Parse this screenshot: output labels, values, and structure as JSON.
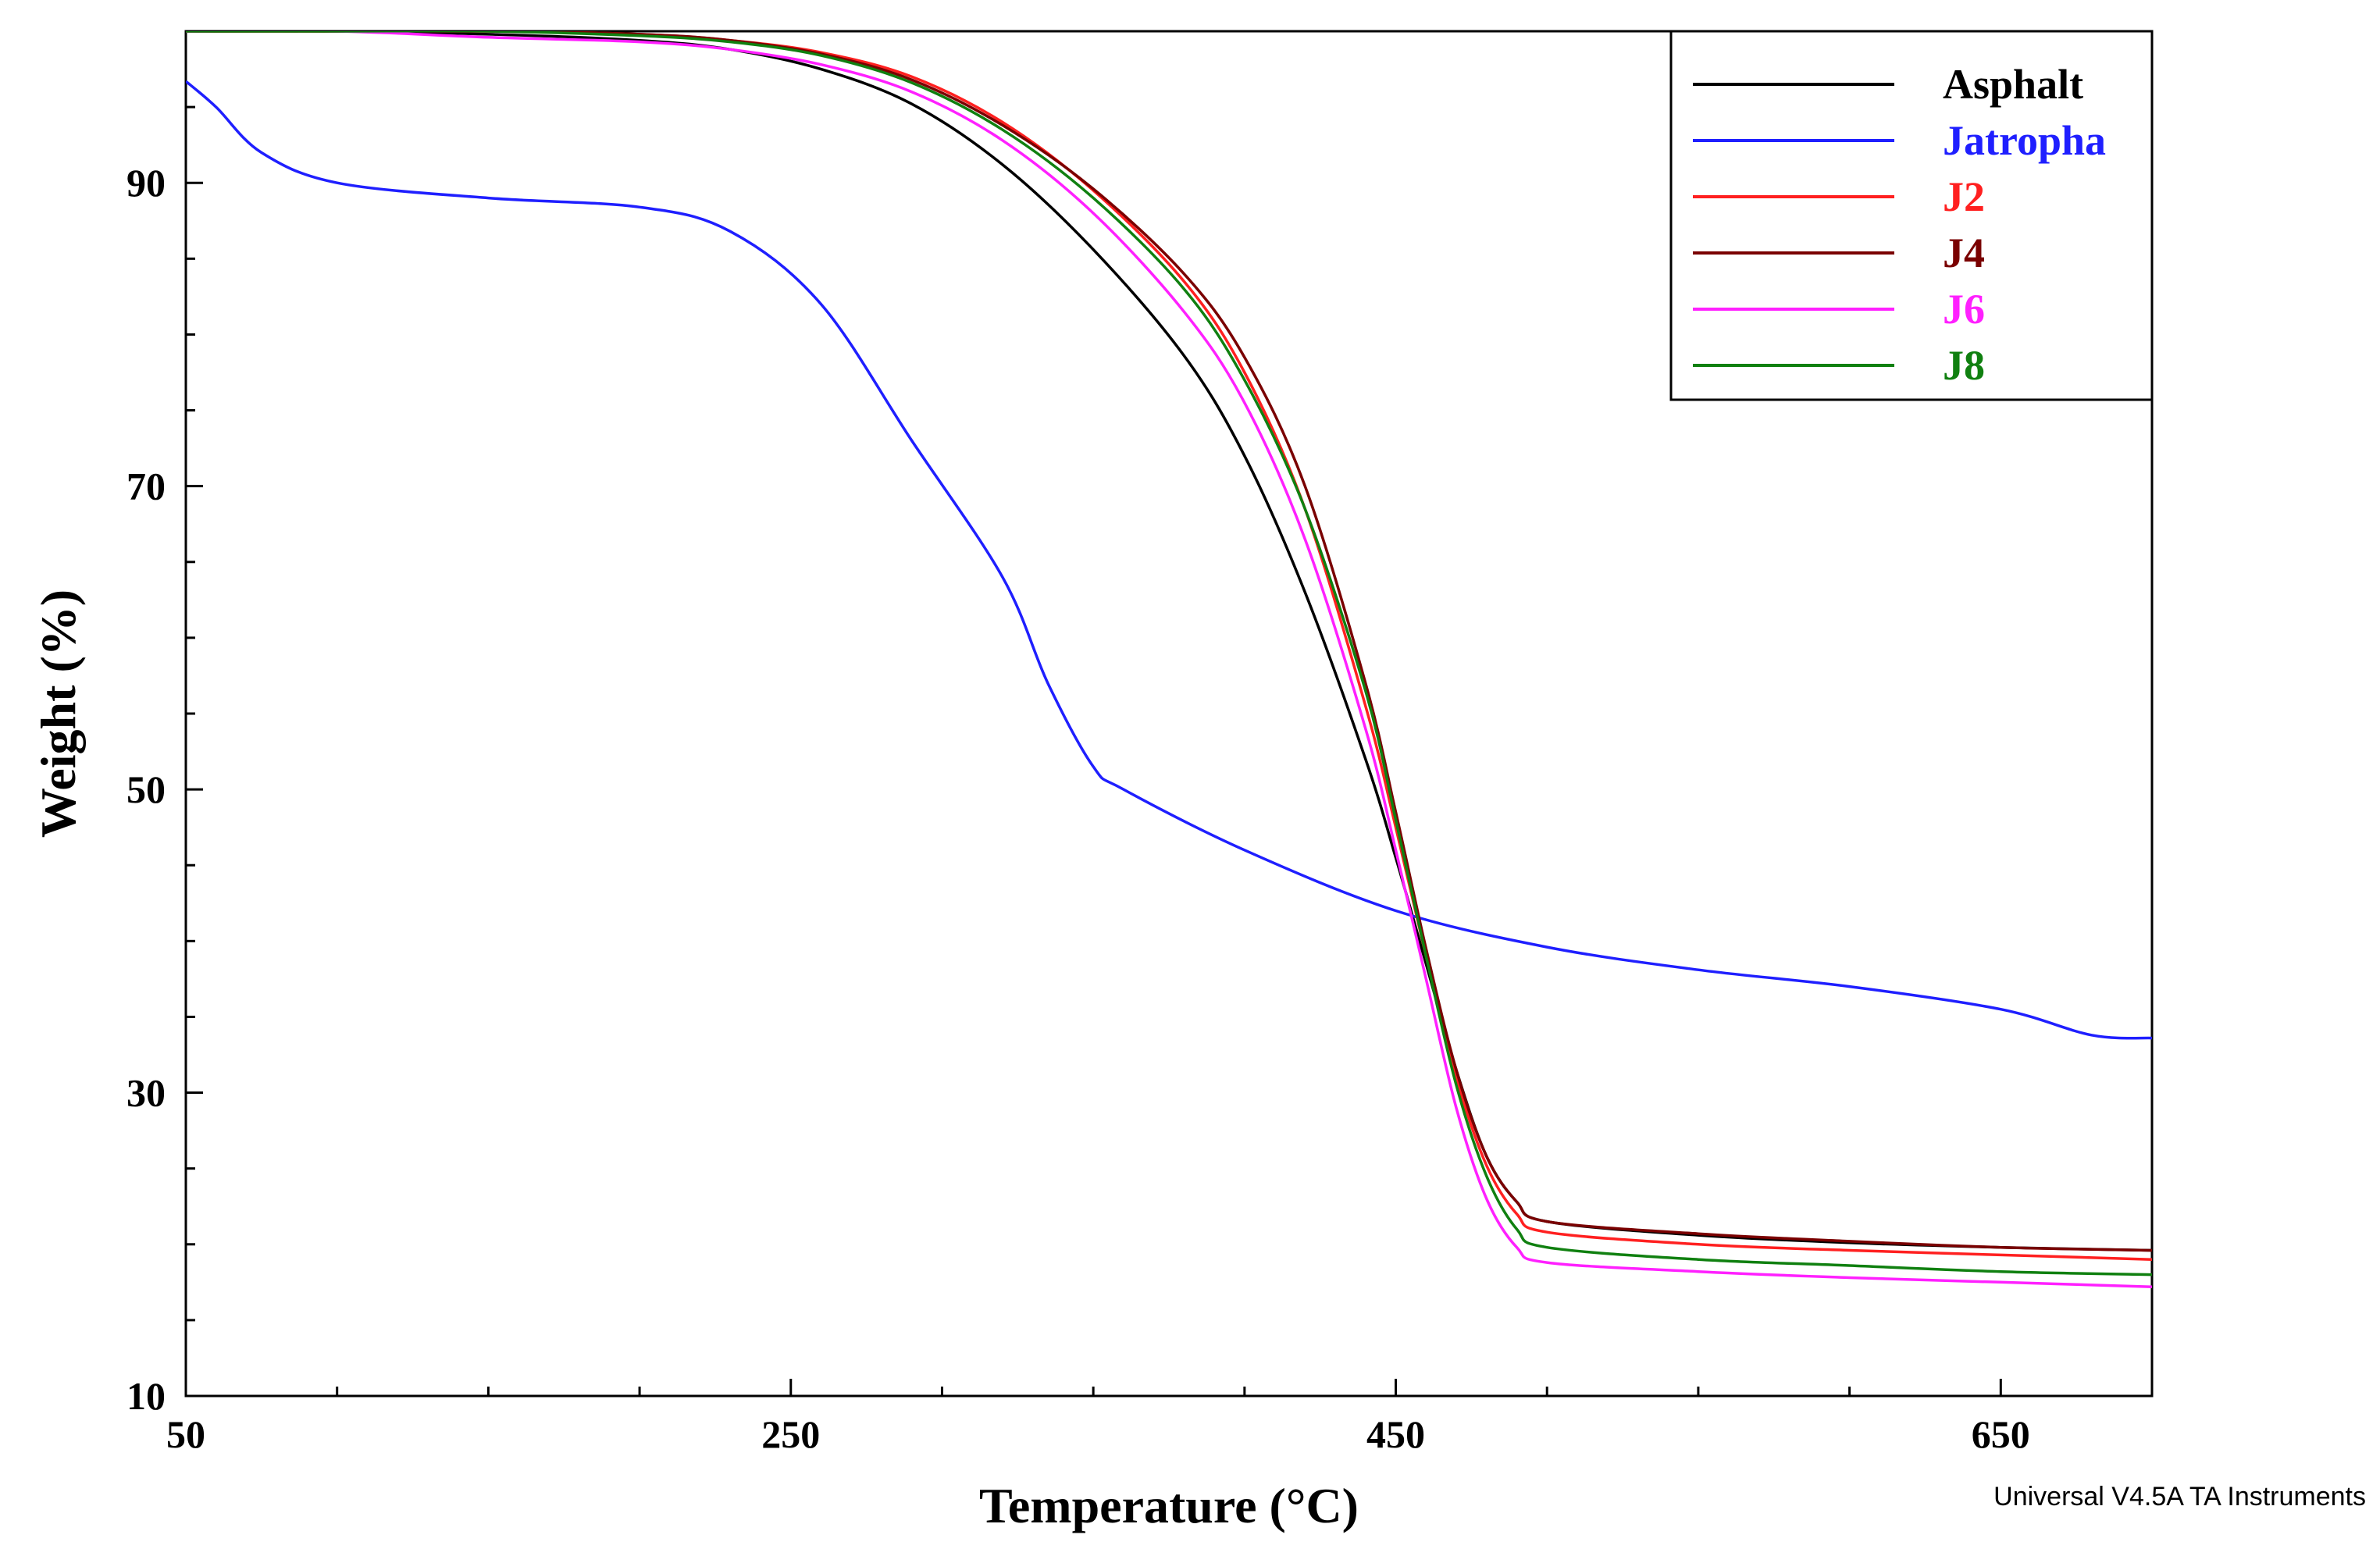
{
  "chart_data": {
    "type": "line",
    "title": "",
    "xlabel": "Temperature (°C)",
    "ylabel": "Weight (%)",
    "xlim": [
      50,
      700
    ],
    "ylim": [
      10,
      100
    ],
    "xticks": [
      50,
      250,
      450,
      650
    ],
    "yticks": [
      10,
      30,
      50,
      70,
      90
    ],
    "footer": "Universal V4.5A TA Instruments",
    "legend_position": "top-right",
    "series": [
      {
        "name": "Asphalt",
        "color": "#000000",
        "x": [
          50,
          100,
          150,
          200,
          230,
          260,
          290,
          320,
          350,
          380,
          400,
          420,
          440,
          450,
          460,
          470,
          480,
          490,
          500,
          550,
          600,
          650,
          700
        ],
        "y": [
          100,
          100,
          99.8,
          99.4,
          98.8,
          97.5,
          95.2,
          91.2,
          85.6,
          78.6,
          72.0,
          63.0,
          52.0,
          45.5,
          38.5,
          31.5,
          25.8,
          22.8,
          21.5,
          20.6,
          20.1,
          19.8,
          19.6
        ]
      },
      {
        "name": "Jatropha",
        "color": "#1f1fff",
        "x": [
          50,
          60,
          75,
          100,
          150,
          200,
          230,
          260,
          290,
          320,
          335,
          350,
          360,
          400,
          450,
          500,
          550,
          600,
          650,
          680,
          700
        ],
        "y": [
          96.7,
          95.0,
          92.0,
          90.0,
          89.0,
          88.4,
          86.8,
          82.0,
          73.0,
          64.0,
          57.0,
          51.5,
          50.0,
          46.0,
          42.0,
          39.6,
          38.1,
          37.0,
          35.5,
          33.8,
          33.6
        ]
      },
      {
        "name": "J2",
        "color": "#ff2020",
        "x": [
          50,
          100,
          150,
          200,
          230,
          260,
          290,
          320,
          350,
          380,
          400,
          420,
          440,
          450,
          460,
          470,
          480,
          490,
          500,
          550,
          600,
          650,
          700
        ],
        "y": [
          100,
          100,
          100,
          99.8,
          99.4,
          98.6,
          97.0,
          94.0,
          89.5,
          83.5,
          77.5,
          68.5,
          55.5,
          47.5,
          39.0,
          31.0,
          25.2,
          22.0,
          20.8,
          20.0,
          19.6,
          19.3,
          19.0
        ]
      },
      {
        "name": "J4",
        "color": "#7a0000",
        "x": [
          50,
          100,
          150,
          200,
          230,
          260,
          290,
          320,
          350,
          380,
          400,
          420,
          440,
          450,
          460,
          470,
          480,
          490,
          500,
          550,
          600,
          650,
          700
        ],
        "y": [
          100,
          100,
          100,
          99.8,
          99.4,
          98.5,
          96.8,
          93.8,
          89.6,
          84.0,
          78.5,
          70.0,
          57.0,
          48.5,
          39.5,
          31.5,
          25.8,
          22.8,
          21.5,
          20.7,
          20.2,
          19.8,
          19.6
        ]
      },
      {
        "name": "J6",
        "color": "#ff20ff",
        "x": [
          50,
          100,
          150,
          200,
          230,
          260,
          290,
          320,
          350,
          380,
          400,
          420,
          440,
          450,
          460,
          470,
          480,
          490,
          500,
          550,
          600,
          650,
          700
        ],
        "y": [
          100,
          100,
          99.6,
          99.3,
          98.8,
          97.8,
          96.0,
          92.8,
          88.0,
          81.5,
          75.5,
          66.5,
          54.0,
          46.0,
          37.5,
          29.0,
          23.0,
          19.8,
          18.8,
          18.2,
          17.8,
          17.5,
          17.2
        ]
      },
      {
        "name": "J8",
        "color": "#108010",
        "x": [
          50,
          100,
          150,
          200,
          230,
          260,
          290,
          320,
          350,
          380,
          400,
          420,
          440,
          450,
          460,
          470,
          480,
          490,
          500,
          550,
          600,
          650,
          700
        ],
        "y": [
          100,
          100,
          100,
          99.7,
          99.3,
          98.4,
          96.6,
          93.5,
          89.0,
          83.0,
          77.0,
          68.5,
          56.5,
          48.0,
          39.0,
          30.5,
          24.5,
          21.0,
          19.8,
          19.0,
          18.6,
          18.2,
          18.0
        ]
      }
    ]
  }
}
